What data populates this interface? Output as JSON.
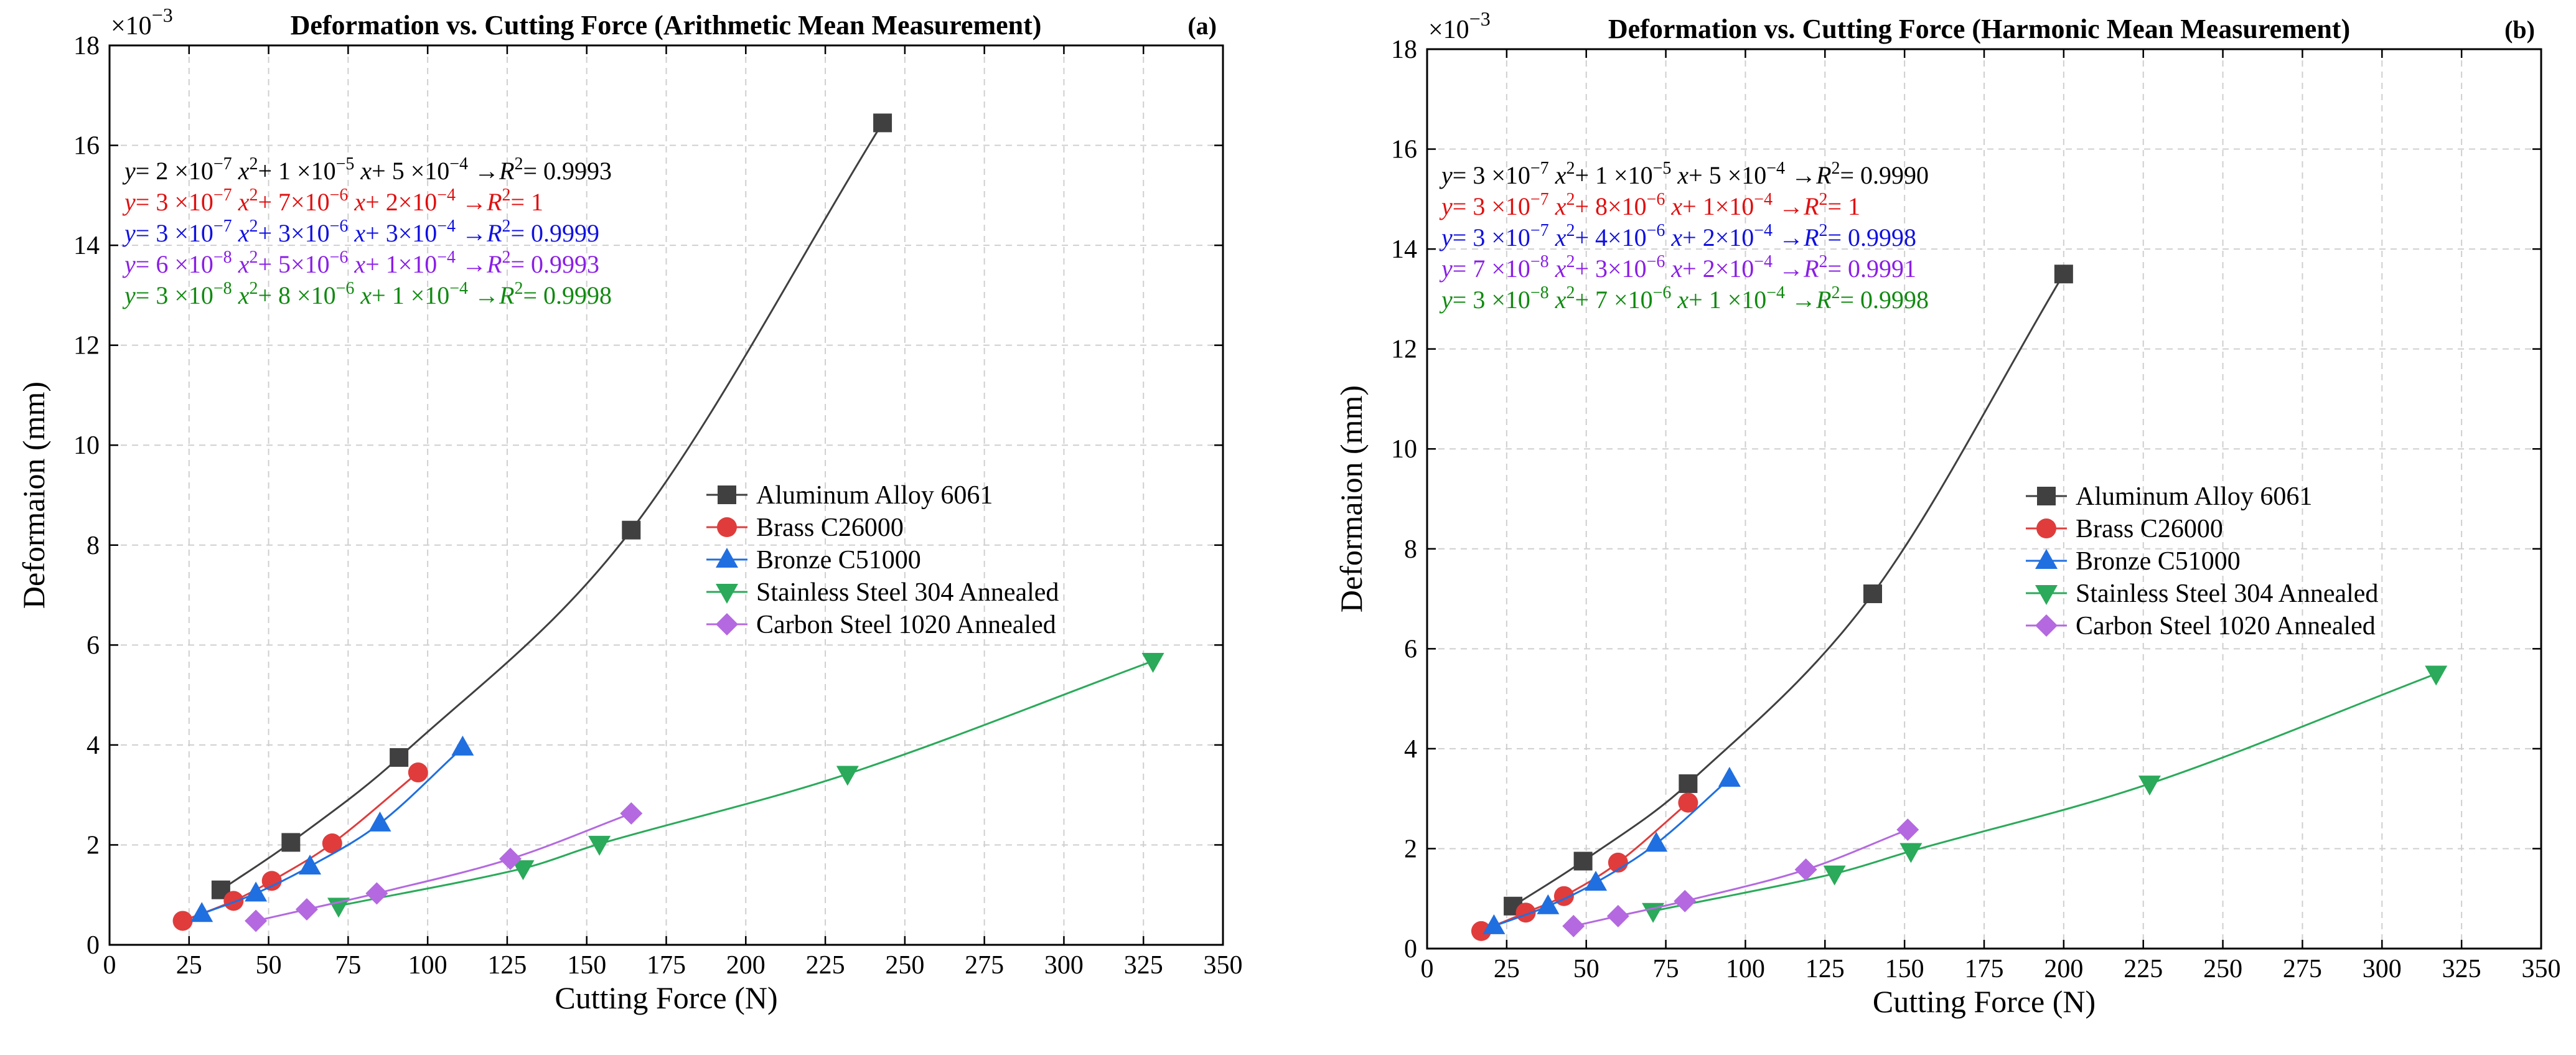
{
  "chart_data": [
    {
      "type": "line",
      "panel_label": "(a)",
      "title": "Deformation vs. Cutting Force (Arithmetic Mean Measurement)",
      "xlabel": "Cutting Force (N)",
      "ylabel": "Deformaion (mm)",
      "y_multiplier": "×10",
      "y_multiplier_exp": "−3",
      "xlim": [
        0,
        350
      ],
      "ylim": [
        0,
        18
      ],
      "xticks": [
        0,
        25,
        50,
        75,
        100,
        125,
        150,
        175,
        200,
        225,
        250,
        275,
        300,
        325,
        350
      ],
      "yticks": [
        0,
        2,
        4,
        6,
        8,
        10,
        12,
        14,
        16,
        18
      ],
      "grid": true,
      "legend_position": "center-right",
      "series": [
        {
          "name": "Aluminum Alloy 6061",
          "color": "#404040",
          "marker": "square",
          "x": [
            35,
            57,
            91,
            164,
            243
          ],
          "y": [
            1.1,
            2.05,
            3.75,
            8.3,
            16.45
          ],
          "fit": [
            2e-07,
            1e-05,
            0.0005
          ]
        },
        {
          "name": "Brass C26000",
          "color": "#e03c3c",
          "marker": "circle",
          "x": [
            23,
            39,
            51,
            70,
            97
          ],
          "y": [
            0.48,
            0.88,
            1.28,
            2.03,
            3.45
          ],
          "fit": [
            3e-07,
            7e-06,
            0.0002
          ]
        },
        {
          "name": "Bronze C51000",
          "color": "#1f6fe0",
          "marker": "triangle-up",
          "x": [
            29,
            46,
            63,
            85,
            111
          ],
          "y": [
            0.62,
            1.03,
            1.57,
            2.43,
            3.95
          ],
          "fit": [
            3e-07,
            3e-06,
            0.0003
          ]
        },
        {
          "name": "Stainless Steel 304 Annealed",
          "color": "#2aaa5a",
          "marker": "triangle-down",
          "x": [
            72,
            130,
            154,
            232,
            328
          ],
          "y": [
            0.78,
            1.53,
            2.02,
            3.42,
            5.68
          ],
          "fit": [
            3e-08,
            8e-06,
            0.0001
          ]
        },
        {
          "name": "Carbon Steel 1020 Annealed",
          "color": "#b469e0",
          "marker": "diamond",
          "x": [
            46,
            62,
            84,
            126,
            164
          ],
          "y": [
            0.48,
            0.71,
            1.03,
            1.72,
            2.63
          ],
          "fit": [
            6e-08,
            5e-06,
            0.0001
          ]
        }
      ],
      "equations": [
        {
          "color": "#000000",
          "arrow_color": "#000000",
          "y": "y",
          "eqsign": "= ",
          "a_coef": "2 ×10",
          "a_exp": "−7",
          "x2": "x",
          "x2exp": "2",
          "plus1": "+ 1 ×10",
          "b_exp": "−5",
          "x1": "x",
          "plus2": "+ 5 ×10",
          "c_exp": "−4",
          "arrow": "→",
          "r": "R",
          "rexp": "2",
          "rval": "= 0.9993"
        },
        {
          "color": "#e01010",
          "arrow_color": "#e01010",
          "y": "y",
          "eqsign": "= ",
          "a_coef": "3 ×10",
          "a_exp": "−7",
          "x2": "x",
          "x2exp": "2",
          "plus1": "+  7×10",
          "b_exp": "−6",
          "x1": "x",
          "plus2": "+  2×10",
          "c_exp": "−4",
          "arrow": "→",
          "r": "R",
          "rexp": "2",
          "rval": "= 1"
        },
        {
          "color": "#1010e0",
          "arrow_color": "#1010e0",
          "y": "y",
          "eqsign": "= ",
          "a_coef": "3 ×10",
          "a_exp": "−7",
          "x2": "x",
          "x2exp": "2",
          "plus1": "+  3×10",
          "b_exp": "−6",
          "x1": "x",
          "plus2": "+  3×10",
          "c_exp": "−4",
          "arrow": "→",
          "r": "R",
          "rexp": "2",
          "rval": "= 0.9999"
        },
        {
          "color": "#8a1ee6",
          "arrow_color": "#8a1ee6",
          "y": "y",
          "eqsign": "= ",
          "a_coef": "6 ×10",
          "a_exp": "−8",
          "x2": "x",
          "x2exp": "2",
          "plus1": "+  5×10",
          "b_exp": "−6",
          "x1": "x",
          "plus2": "+  1×10",
          "c_exp": "−4",
          "arrow": "→",
          "r": "R",
          "rexp": "2",
          "rval": "= 0.9993"
        },
        {
          "color": "#108a10",
          "arrow_color": "#108a10",
          "y": "y",
          "eqsign": "= ",
          "a_coef": "3 ×10",
          "a_exp": "−8",
          "x2": "x",
          "x2exp": "2",
          "plus1": "+ 8 ×10",
          "b_exp": "−6",
          "x1": "x",
          "plus2": "+ 1 ×10",
          "c_exp": "−4",
          "arrow": "→",
          "r": "R",
          "rexp": "2",
          "rval": "= 0.9998"
        }
      ]
    },
    {
      "type": "line",
      "panel_label": "(b)",
      "title": "Deformation vs. Cutting Force (Harmonic Mean Measurement)",
      "xlabel": "Cutting Force (N)",
      "ylabel": "Deformaion (mm)",
      "y_multiplier": "×10",
      "y_multiplier_exp": "−3",
      "xlim": [
        0,
        350
      ],
      "ylim": [
        0,
        18
      ],
      "xticks": [
        0,
        25,
        50,
        75,
        100,
        125,
        150,
        175,
        200,
        225,
        250,
        275,
        300,
        325,
        350
      ],
      "yticks": [
        0,
        2,
        4,
        6,
        8,
        10,
        12,
        14,
        16,
        18
      ],
      "grid": true,
      "legend_position": "center-right",
      "series": [
        {
          "name": "Aluminum Alloy 6061",
          "color": "#404040",
          "marker": "square",
          "x": [
            27,
            49,
            82,
            140,
            200
          ],
          "y": [
            0.85,
            1.75,
            3.3,
            7.1,
            13.5
          ],
          "fit": [
            3e-07,
            1e-05,
            0.0005
          ]
        },
        {
          "name": "Brass C26000",
          "color": "#e03c3c",
          "marker": "circle",
          "x": [
            17,
            31,
            43,
            60,
            82
          ],
          "y": [
            0.35,
            0.72,
            1.05,
            1.72,
            2.92
          ],
          "fit": [
            3e-07,
            8e-06,
            0.0001
          ]
        },
        {
          "name": "Bronze C51000",
          "color": "#1f6fe0",
          "marker": "triangle-up",
          "x": [
            21,
            38,
            53,
            72,
            95
          ],
          "y": [
            0.45,
            0.85,
            1.32,
            2.1,
            3.4
          ],
          "fit": [
            3e-07,
            4e-06,
            0.0002
          ]
        },
        {
          "name": "Stainless Steel 304 Annealed",
          "color": "#2aaa5a",
          "marker": "triangle-down",
          "x": [
            71,
            128,
            152,
            227,
            317
          ],
          "y": [
            0.75,
            1.5,
            1.95,
            3.3,
            5.5
          ],
          "fit": [
            3e-08,
            7e-06,
            0.0001
          ]
        },
        {
          "name": "Carbon Steel 1020 Annealed",
          "color": "#b469e0",
          "marker": "diamond",
          "x": [
            46,
            60,
            81,
            119,
            151
          ],
          "y": [
            0.45,
            0.65,
            0.95,
            1.58,
            2.38
          ],
          "fit": [
            7e-08,
            3e-06,
            0.0002
          ]
        }
      ],
      "equations": [
        {
          "color": "#000000",
          "arrow_color": "#000000",
          "y": "y",
          "eqsign": "= ",
          "a_coef": "3 ×10",
          "a_exp": "−7",
          "x2": "x",
          "x2exp": "2",
          "plus1": "+ 1 ×10",
          "b_exp": "−5",
          "x1": "x",
          "plus2": "+ 5 ×10",
          "c_exp": "−4",
          "arrow": "→",
          "r": "R",
          "rexp": "2",
          "rval": "= 0.9990"
        },
        {
          "color": "#e01010",
          "arrow_color": "#e01010",
          "y": "y",
          "eqsign": "= ",
          "a_coef": "3 ×10",
          "a_exp": "−7",
          "x2": "x",
          "x2exp": "2",
          "plus1": "+  8×10",
          "b_exp": "−6",
          "x1": "x",
          "plus2": "+  1×10",
          "c_exp": "−4",
          "arrow": "→",
          "r": "R",
          "rexp": "2",
          "rval": "= 1"
        },
        {
          "color": "#1010e0",
          "arrow_color": "#1010e0",
          "y": "y",
          "eqsign": "= ",
          "a_coef": "3 ×10",
          "a_exp": "−7",
          "x2": "x",
          "x2exp": "2",
          "plus1": "+  4×10",
          "b_exp": "−6",
          "x1": "x",
          "plus2": "+  2×10",
          "c_exp": "−4",
          "arrow": "→",
          "r": "R",
          "rexp": "2",
          "rval": "= 0.9998"
        },
        {
          "color": "#8a1ee6",
          "arrow_color": "#8a1ee6",
          "y": "y",
          "eqsign": "= ",
          "a_coef": "7 ×10",
          "a_exp": "−8",
          "x2": "x",
          "x2exp": "2",
          "plus1": "+  3×10",
          "b_exp": "−6",
          "x1": "x",
          "plus2": "+  2×10",
          "c_exp": "−4",
          "arrow": "→",
          "r": "R",
          "rexp": "2",
          "rval": "= 0.9991"
        },
        {
          "color": "#108a10",
          "arrow_color": "#108a10",
          "y": "y",
          "eqsign": "= ",
          "a_coef": "3 ×10",
          "a_exp": "−8",
          "x2": "x",
          "x2exp": "2",
          "plus1": "+ 7 ×10",
          "b_exp": "−6",
          "x1": "x",
          "plus2": "+ 1 ×10",
          "c_exp": "−4",
          "arrow": "→",
          "r": "R",
          "rexp": "2",
          "rval": "= 0.9998"
        }
      ]
    }
  ]
}
